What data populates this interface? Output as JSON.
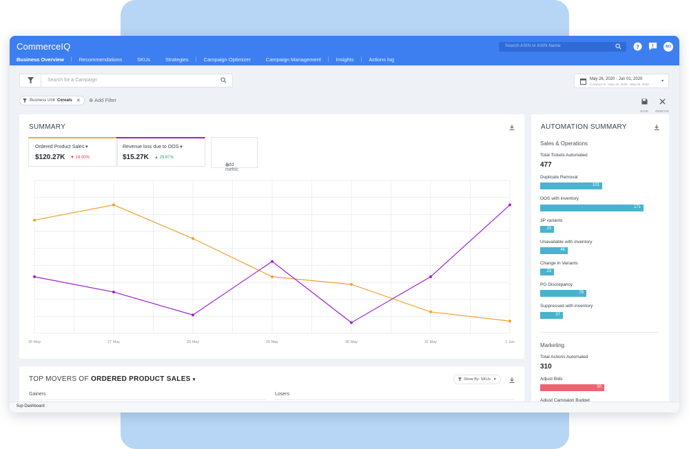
{
  "app": {
    "logo": "CommerceIQ",
    "avatar_initials": "BD",
    "footer_label": "5vp Dashboard"
  },
  "search": {
    "placeholder": "Search ASIN or ASIN Name"
  },
  "nav": {
    "items": [
      {
        "label": "Business Overview",
        "active": true
      },
      {
        "label": "Recommendations",
        "active": false
      },
      {
        "label": "SKUs",
        "active": false
      },
      {
        "label": "Strategies",
        "active": false
      },
      {
        "label": "Campaign Optimizer",
        "active": false
      },
      {
        "label": "Campaign Management",
        "active": false
      },
      {
        "label": "Insights",
        "active": false
      },
      {
        "label": "Actions log",
        "active": false
      }
    ]
  },
  "filters": {
    "search_placeholder": "Search for a Campaign",
    "chip_key": "Business Unit : ",
    "chip_value": "Cereals",
    "add_filter": "Add Filter",
    "save_label": "SAVE",
    "remove_label": "REMOVE"
  },
  "daterange": {
    "primary": "May 26, 2020 - Jun 01, 2020",
    "compare": "Compare to : May 19, 2020 - May 25, 2020"
  },
  "summary": {
    "title": "SUMMARY",
    "metrics": [
      {
        "name": "Ordered Product Sales",
        "value": "$120.27K",
        "change": "19.00%",
        "direction": "down",
        "color": "#f5a623"
      },
      {
        "name": "Revenue loss due to OOS",
        "value": "$15.27K",
        "change": "29.87%",
        "direction": "up",
        "color": "#9b1fd1"
      }
    ],
    "add_metric": "Add metric"
  },
  "chart_data": {
    "type": "line",
    "categories": [
      "26 May",
      "27 May",
      "28 May",
      "29 May",
      "30 May",
      "31 May",
      "1 Jun"
    ],
    "series": [
      {
        "name": "Ordered Product Sales",
        "color": "#f0a02a",
        "values": [
          74,
          84,
          62,
          37,
          32,
          14,
          8
        ]
      },
      {
        "name": "Revenue loss due to OOS",
        "color": "#9b1fd1",
        "values": [
          37,
          27,
          12,
          47,
          7,
          37,
          84
        ]
      }
    ],
    "ylim": [
      0,
      100
    ],
    "grid": true,
    "xlabel": "",
    "ylabel": ""
  },
  "automation": {
    "title": "AUTOMATION SUMMARY",
    "sections": [
      {
        "name": "Sales & Operations",
        "total_label": "Total Tickets Automated",
        "total": "477",
        "items": [
          {
            "label": "Duplicate Removal",
            "value": "101"
          },
          {
            "label": "OOS with inventory",
            "value": "171"
          },
          {
            "label": "3P variants",
            "value": "23"
          },
          {
            "label": "Unavailable with inventory",
            "value": "46"
          },
          {
            "label": "Change in Variants",
            "value": "23"
          },
          {
            "label": "PO Discrepancy",
            "value": "76"
          },
          {
            "label": "Suppressed with inventory",
            "value": "37"
          }
        ]
      },
      {
        "name": "Marketing",
        "total_label": "Total Actions Automated",
        "total": "310",
        "items": [
          {
            "label": "Adjust Bids",
            "value": "50"
          },
          {
            "label": "Adjust Campaign Budget",
            "value": ""
          }
        ]
      }
    ],
    "bar_color": "#49b3cf",
    "marketing_bar_color": "#ef6372"
  },
  "movers": {
    "prefix": "TOP MOVERS OF",
    "metric": "ORDERED PRODUCT SALES",
    "show_by": "Show By: SKUs",
    "gainers": "Gainers",
    "losers": "Losers"
  }
}
